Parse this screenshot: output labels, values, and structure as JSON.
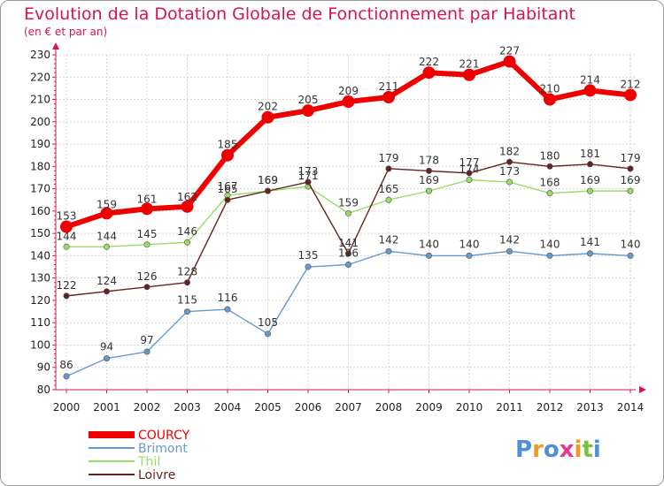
{
  "chart_data": {
    "type": "line",
    "title": "Evolution de la Dotation Globale de Fonctionnement par Habitant",
    "subtitle": "(en € et par an)",
    "x": [
      "2000",
      "2001",
      "2002",
      "2003",
      "2004",
      "2005",
      "2006",
      "2007",
      "2008",
      "2009",
      "2010",
      "2011",
      "2012",
      "2013",
      "2014"
    ],
    "ylim": [
      80,
      230
    ],
    "yticks": [
      80,
      90,
      100,
      110,
      120,
      130,
      140,
      150,
      160,
      170,
      180,
      190,
      200,
      210,
      220,
      230
    ],
    "grid": true,
    "legend_position": "bottom-left",
    "series": [
      {
        "name": "COURCY",
        "color": "#ee0000",
        "values": [
          153,
          159,
          161,
          162,
          185,
          202,
          205,
          209,
          211,
          222,
          221,
          227,
          210,
          214,
          212
        ]
      },
      {
        "name": "Brimont",
        "color": "#6699cc",
        "values": [
          86,
          94,
          97,
          115,
          116,
          105,
          135,
          136,
          142,
          140,
          140,
          142,
          140,
          141,
          140
        ]
      },
      {
        "name": "Thil",
        "color": "#99dd66",
        "values": [
          144,
          144,
          145,
          146,
          167,
          169,
          171,
          159,
          165,
          169,
          174,
          173,
          168,
          169,
          169
        ]
      },
      {
        "name": "Loivre",
        "color": "#662222",
        "values": [
          122,
          124,
          126,
          128,
          165,
          169,
          173,
          141,
          179,
          178,
          177,
          182,
          180,
          181,
          179
        ]
      }
    ]
  },
  "logo": {
    "text": "Proxiti",
    "letters": [
      "P",
      "r",
      "o",
      "x",
      "i",
      "t",
      "i"
    ],
    "colors": [
      "#4f8fd8",
      "#f39a1e",
      "#4f8fd8",
      "#e63a8e",
      "#f39a1e",
      "#7cc242",
      "#4f8fd8"
    ]
  }
}
